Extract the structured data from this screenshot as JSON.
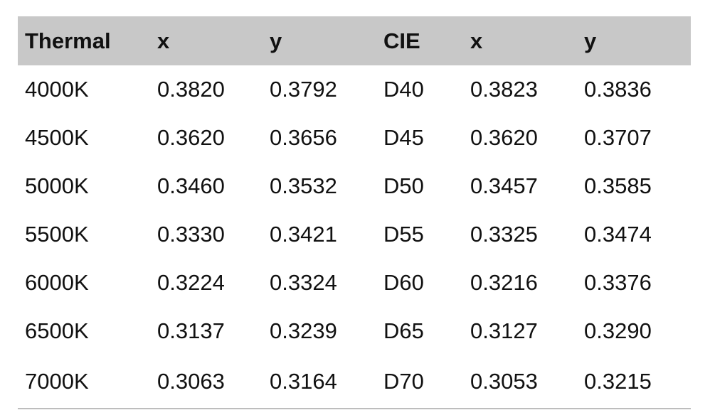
{
  "table": {
    "headers": [
      "Thermal",
      "x",
      "y",
      "CIE",
      "x",
      "y"
    ],
    "rows": [
      [
        "4000K",
        "0.3820",
        "0.3792",
        "D40",
        "0.3823",
        "0.3836"
      ],
      [
        "4500K",
        "0.3620",
        "0.3656",
        "D45",
        "0.3620",
        "0.3707"
      ],
      [
        "5000K",
        "0.3460",
        "0.3532",
        "D50",
        "0.3457",
        "0.3585"
      ],
      [
        "5500K",
        "0.3330",
        "0.3421",
        "D55",
        "0.3325",
        "0.3474"
      ],
      [
        "6000K",
        "0.3224",
        "0.3324",
        "D60",
        "0.3216",
        "0.3376"
      ],
      [
        "6500K",
        "0.3137",
        "0.3239",
        "D65",
        "0.3127",
        "0.3290"
      ],
      [
        "7000K",
        "0.3063",
        "0.3164",
        "D70",
        "0.3053",
        "0.3215"
      ]
    ]
  },
  "colors": {
    "header_background": "#c8c8c8",
    "rule": "#bdbdbd",
    "text": "#111111"
  }
}
